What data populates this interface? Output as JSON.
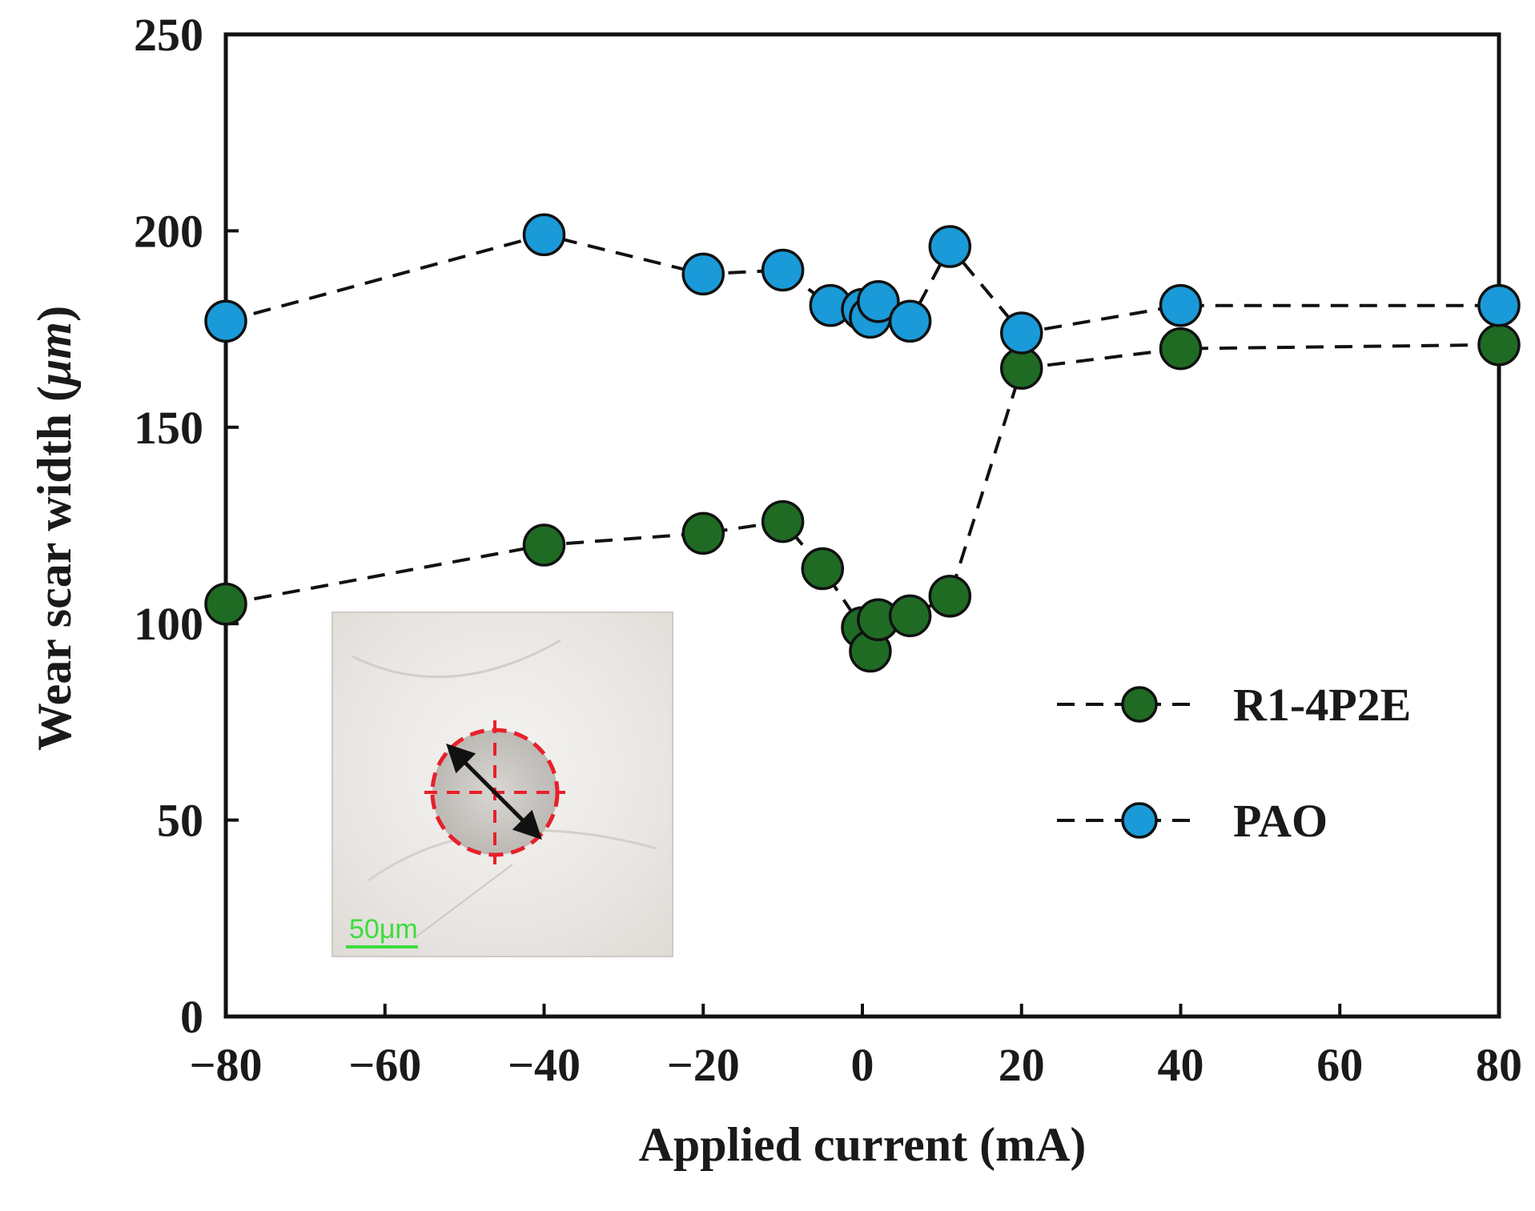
{
  "chart_data": {
    "type": "scatter",
    "title": "",
    "xlabel": "Applied current (mA)",
    "ylabel": "Wear scar width (μm)",
    "ylabel_parts": {
      "text": "Wear scar width (",
      "unit": "μm",
      "close": ")"
    },
    "xlim": [
      -80,
      80
    ],
    "ylim": [
      0,
      250
    ],
    "xticks": [
      -80,
      -60,
      -40,
      -20,
      0,
      20,
      40,
      60,
      80
    ],
    "yticks": [
      0,
      50,
      100,
      150,
      200,
      250
    ],
    "grid": false,
    "legend_position": "right",
    "series": [
      {
        "name": "R1-4P2E",
        "color": "#1f6b24",
        "line": "dashed",
        "points": [
          {
            "x": -80,
            "y": 105
          },
          {
            "x": -40,
            "y": 120
          },
          {
            "x": -20,
            "y": 123
          },
          {
            "x": -10,
            "y": 126
          },
          {
            "x": -5,
            "y": 114
          },
          {
            "x": 0,
            "y": 99
          },
          {
            "x": 1,
            "y": 93
          },
          {
            "x": 2,
            "y": 101
          },
          {
            "x": 6,
            "y": 102
          },
          {
            "x": 11,
            "y": 107
          },
          {
            "x": 20,
            "y": 165
          },
          {
            "x": 40,
            "y": 170
          },
          {
            "x": 80,
            "y": 171
          }
        ]
      },
      {
        "name": "PAO",
        "color": "#1a9ad8",
        "line": "dashed",
        "points": [
          {
            "x": -80,
            "y": 177
          },
          {
            "x": -40,
            "y": 199
          },
          {
            "x": -20,
            "y": 189
          },
          {
            "x": -10,
            "y": 190
          },
          {
            "x": -4,
            "y": 181
          },
          {
            "x": 0,
            "y": 180
          },
          {
            "x": 1,
            "y": 178
          },
          {
            "x": 2,
            "y": 182
          },
          {
            "x": 6,
            "y": 177
          },
          {
            "x": 11,
            "y": 196
          },
          {
            "x": 20,
            "y": 174
          },
          {
            "x": 40,
            "y": 181
          },
          {
            "x": 80,
            "y": 181
          }
        ]
      }
    ],
    "inset": {
      "description_label": "micrograph",
      "scale_bar_label": "50μm"
    }
  }
}
